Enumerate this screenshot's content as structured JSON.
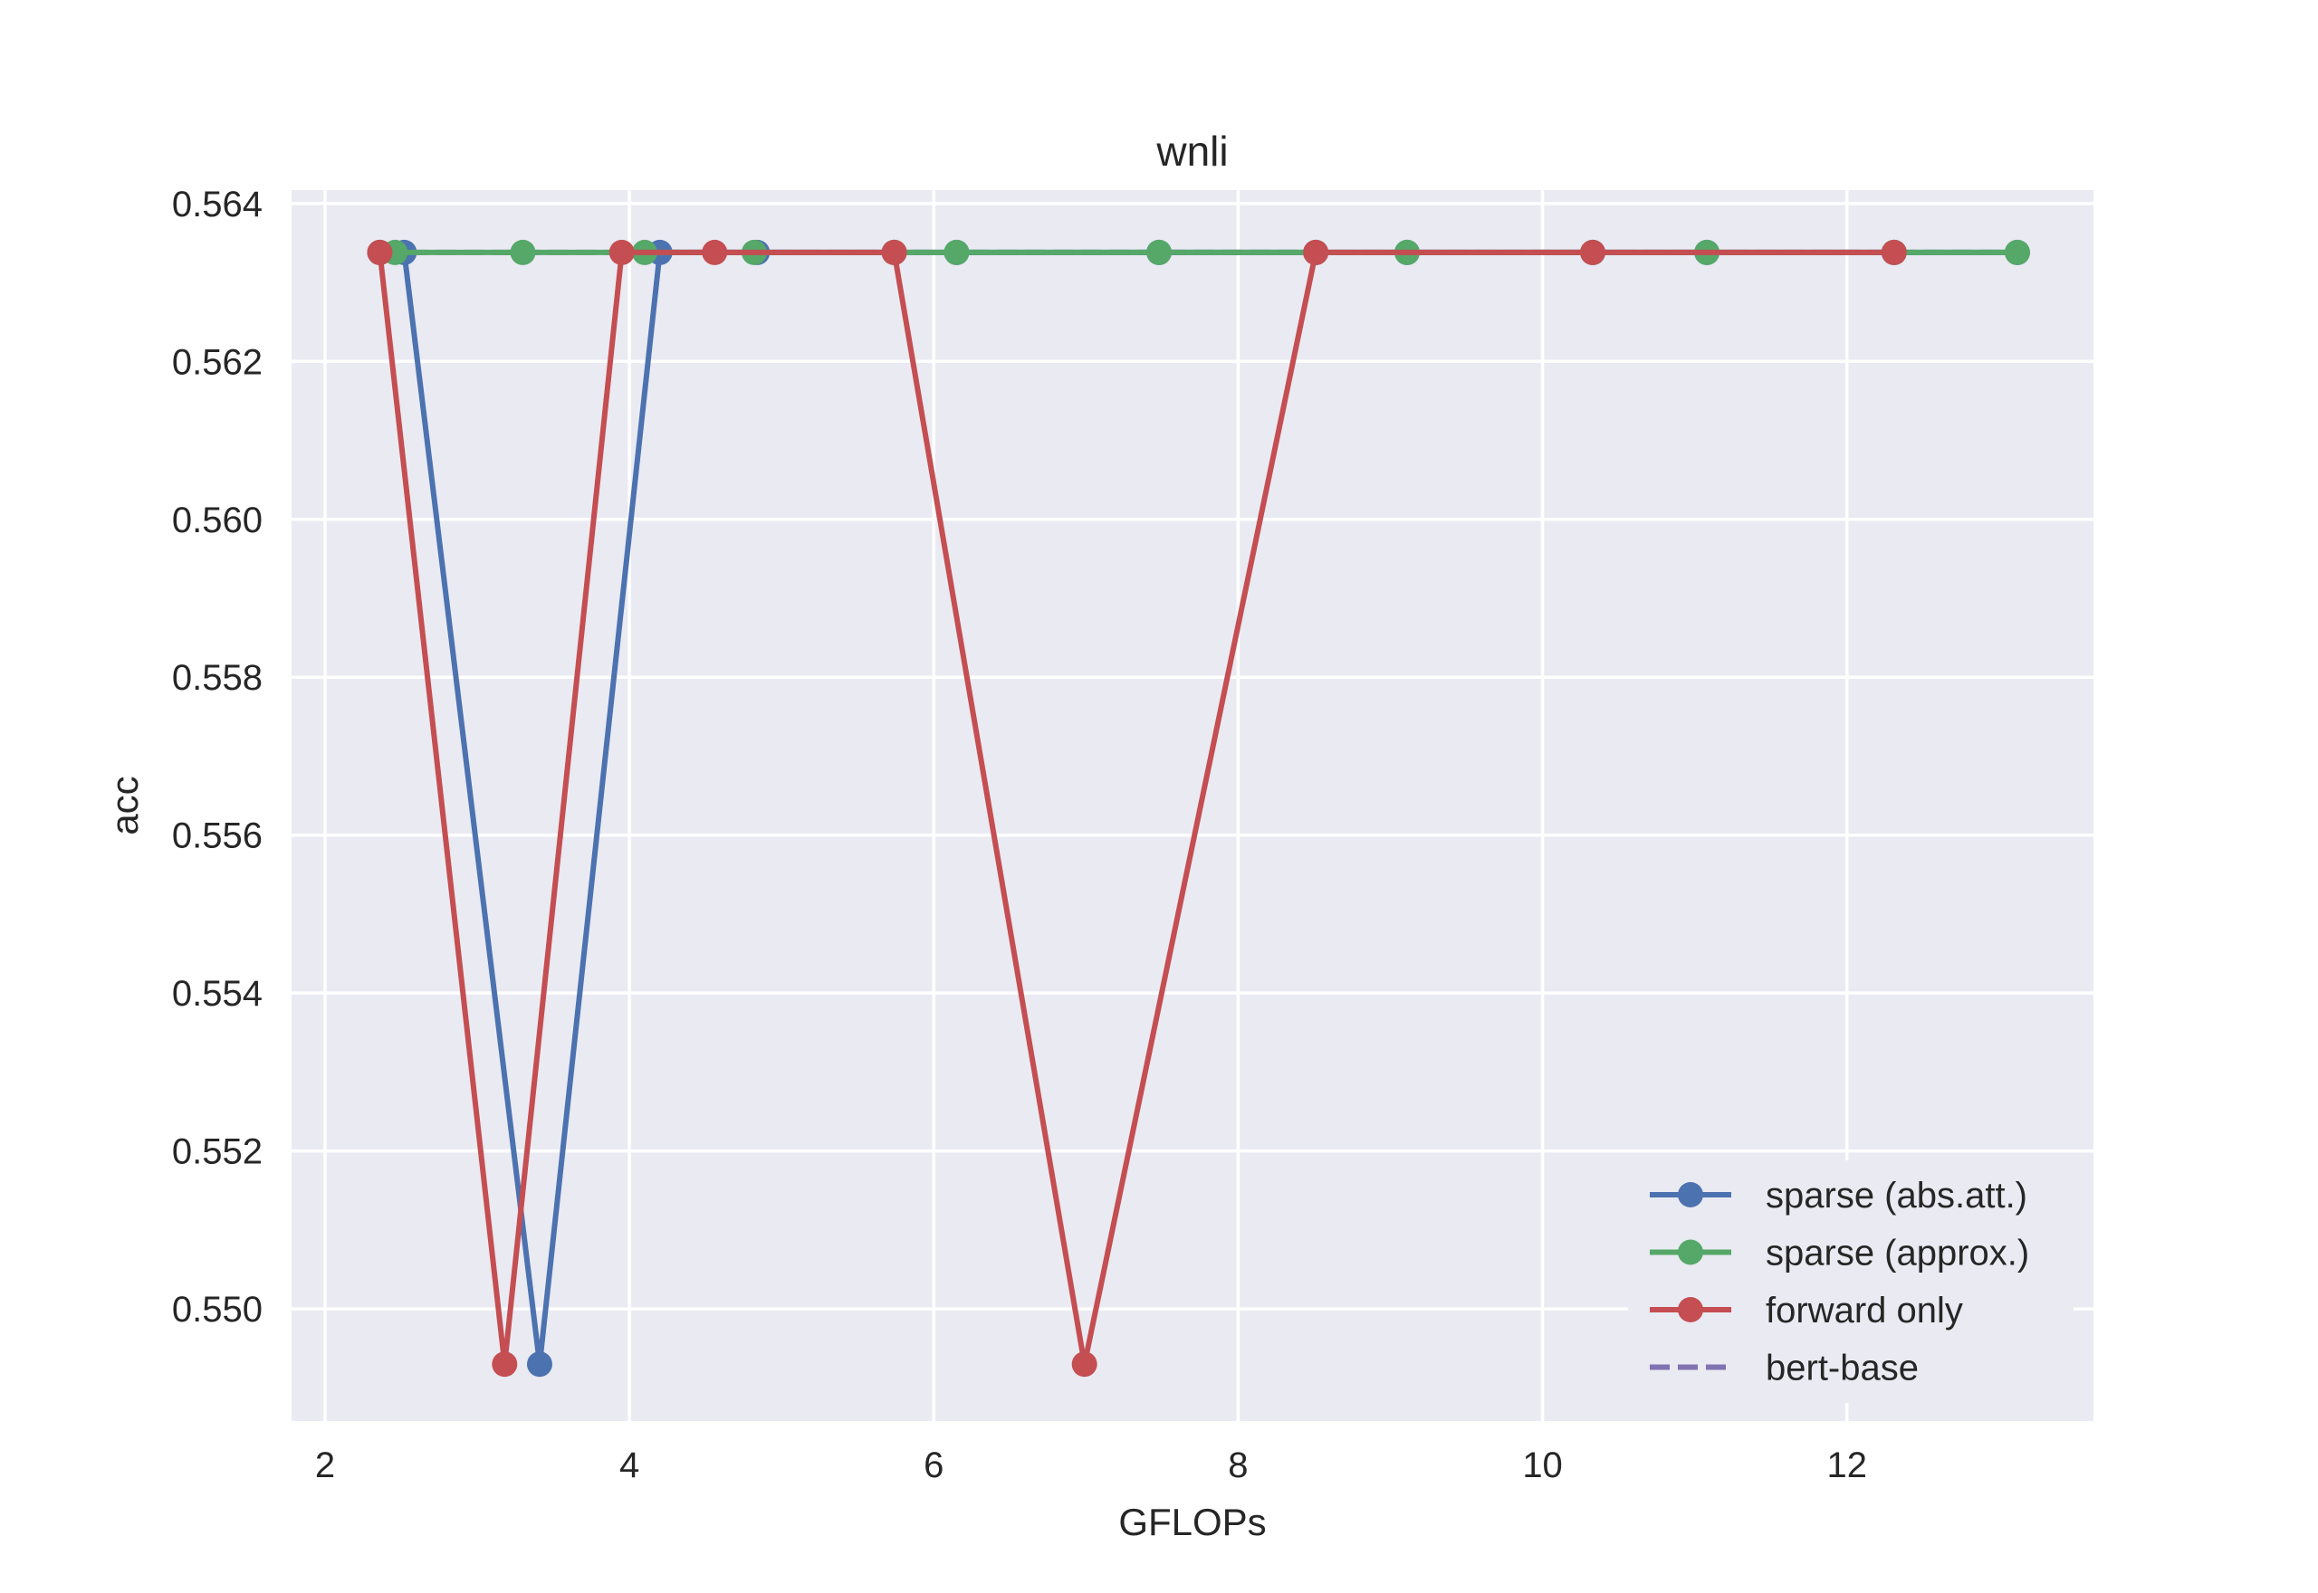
{
  "chart_data": {
    "type": "line",
    "title": "wnli",
    "xlabel": "GFLOPs",
    "ylabel": "acc",
    "xlim": [
      1.78,
      13.62
    ],
    "ylim": [
      0.54858,
      0.56417
    ],
    "xticks": [
      2,
      4,
      6,
      8,
      10,
      12
    ],
    "xtick_labels": [
      "2",
      "4",
      "6",
      "8",
      "10",
      "12"
    ],
    "yticks": [
      0.55,
      0.552,
      0.554,
      0.556,
      0.558,
      0.56,
      0.562,
      0.564
    ],
    "ytick_labels": [
      "0.550",
      "0.552",
      "0.554",
      "0.556",
      "0.558",
      "0.560",
      "0.562",
      "0.564"
    ],
    "grid": true,
    "legend_position": "lower-right",
    "series": [
      {
        "name": "sparse (abs.att.)",
        "color": "#4C72B0",
        "style": "solid-marker",
        "x": [
          2.36,
          2.52,
          3.41,
          4.2,
          4.84,
          5.74,
          6.15,
          7.48,
          8.51,
          9.11,
          10.33,
          11.08,
          12.31,
          13.12
        ],
        "y": [
          0.56338,
          0.56338,
          0.5493,
          0.56338,
          0.56338,
          0.56338,
          0.56338,
          0.56338,
          0.56338,
          0.56338,
          0.56338,
          0.56338,
          0.56338,
          0.56338
        ]
      },
      {
        "name": "sparse (approx.)",
        "color": "#55A868",
        "style": "solid-marker",
        "x": [
          2.36,
          2.46,
          3.3,
          4.1,
          4.82,
          5.74,
          6.15,
          7.48,
          8.51,
          9.11,
          10.33,
          11.08,
          12.31,
          13.12
        ],
        "y": [
          0.56338,
          0.56338,
          0.56338,
          0.56338,
          0.56338,
          0.56338,
          0.56338,
          0.56338,
          0.56338,
          0.56338,
          0.56338,
          0.56338,
          0.56338,
          0.56338
        ]
      },
      {
        "name": "forward only",
        "color": "#C44E52",
        "style": "solid-marker",
        "x": [
          2.36,
          3.18,
          3.95,
          4.56,
          5.74,
          6.99,
          8.51,
          10.33,
          12.31
        ],
        "y": [
          0.56338,
          0.5493,
          0.56338,
          0.56338,
          0.56338,
          0.5493,
          0.56338,
          0.56338,
          0.56338
        ]
      },
      {
        "name": "bert-base",
        "color": "#8172B2",
        "style": "dashed",
        "x": [
          2.36,
          13.12
        ],
        "y": [
          0.56338,
          0.56338
        ]
      }
    ]
  }
}
